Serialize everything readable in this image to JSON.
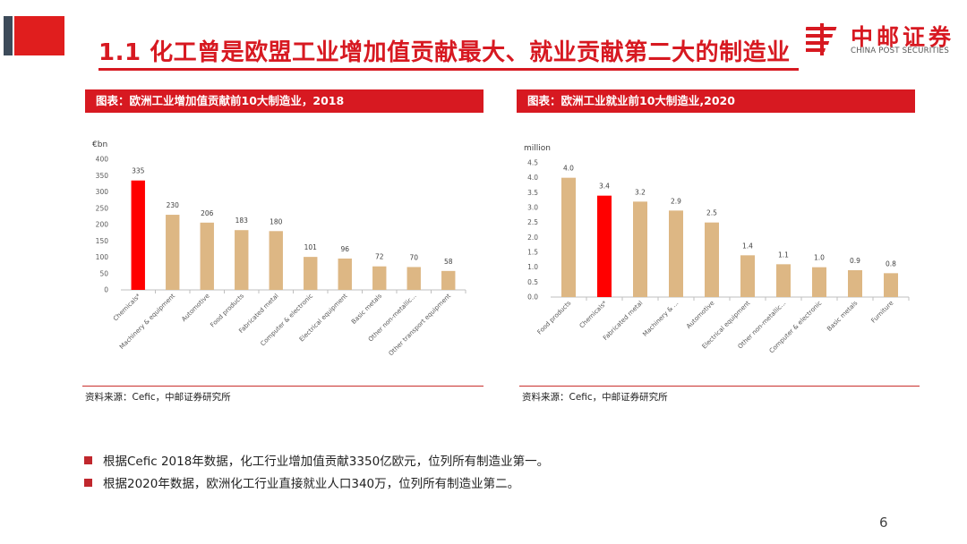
{
  "header": {
    "title": "1.1 化工曾是欧盟工业增加值贡献最大、就业贡献第二大的制造业"
  },
  "logo": {
    "name_cn": "中邮证券",
    "name_en": "CHINA POST SECURITIES",
    "icon": "china-post-logo-icon"
  },
  "colors": {
    "brand_red": "#d71921",
    "highlight_bar": "#ff0000",
    "bar": "#ddb784",
    "gray_block": "#3d4b5a"
  },
  "chart_data": [
    {
      "type": "bar",
      "title": "图表：欧洲工业增加值贡献前10大制造业，2018",
      "ylabel": "€bn",
      "ylim": [
        0,
        400
      ],
      "yticks": [
        "0",
        "50",
        "100",
        "150",
        "200",
        "250",
        "300",
        "350",
        "400"
      ],
      "categories": [
        "Chemicals*",
        "Machinery & equipment",
        "Automotive",
        "Food products",
        "Fabricated metal",
        "Computer & electronic",
        "Electrical equipment",
        "Basic metals",
        "Other non-metallic...",
        "Other transport equipment"
      ],
      "values": [
        335,
        230,
        206,
        183,
        180,
        101,
        96,
        72,
        70,
        58
      ],
      "value_labels": [
        "335",
        "230",
        "206",
        "183",
        "180",
        "101",
        "96",
        "72",
        "70",
        "58"
      ],
      "highlight_index": 0,
      "source": "资料来源：Cefic，中邮证券研究所"
    },
    {
      "type": "bar",
      "title": "图表：欧洲工业就业前10大制造业,2020",
      "ylabel": "million",
      "ylim": [
        0,
        4.5
      ],
      "yticks": [
        "0.0",
        "0.5",
        "1.0",
        "1.5",
        "2.0",
        "2.5",
        "3.0",
        "3.5",
        "4.0",
        "4.5"
      ],
      "categories": [
        "Food products",
        "Chemicals*",
        "Fabricated metal",
        "Machinery & ...",
        "Automotive",
        "Electrical equipment",
        "Other non-metallic...",
        "Computer & electronic",
        "Basic metals",
        "Furniture"
      ],
      "values": [
        4.0,
        3.4,
        3.2,
        2.9,
        2.5,
        1.4,
        1.1,
        1.0,
        0.9,
        0.8
      ],
      "value_labels": [
        "4.0",
        "3.4",
        "3.2",
        "2.9",
        "2.5",
        "1.4",
        "1.1",
        "1.0",
        "0.9",
        "0.8"
      ],
      "highlight_index": 1,
      "source": "资料来源：Cefic，中邮证券研究所"
    }
  ],
  "bullets": [
    "根据Cefic 2018年数据，化工行业增加值贡献3350亿欧元，位列所有制造业第一。",
    "根据2020年数据，欧洲化工行业直接就业人口340万，位列所有制造业第二。"
  ],
  "footer": {
    "page_number": "6"
  }
}
